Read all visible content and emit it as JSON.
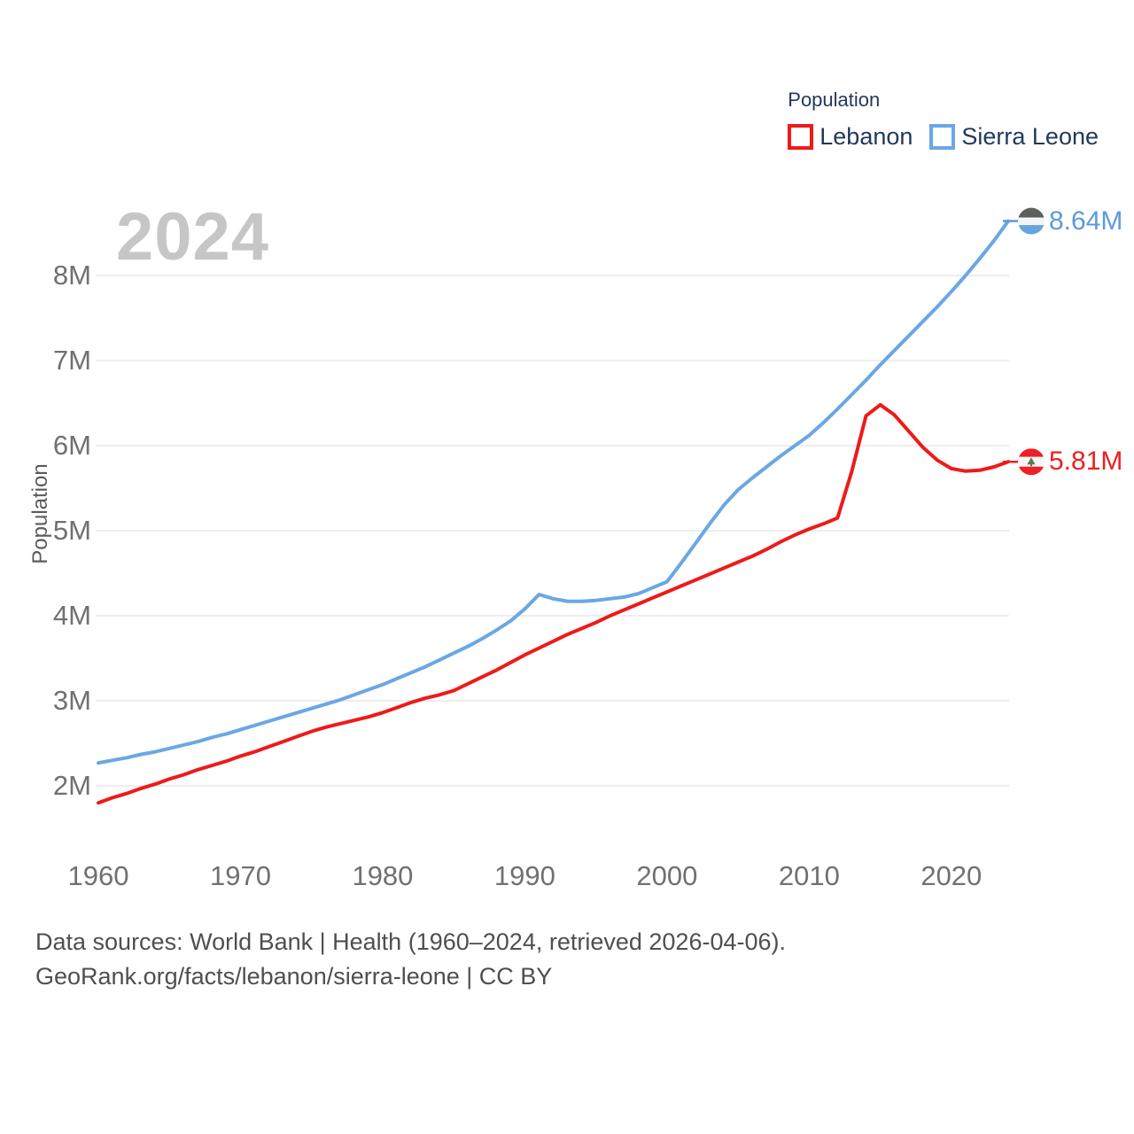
{
  "legend": {
    "title": "Population",
    "items": [
      {
        "label": "Lebanon",
        "color": "#ee1a1a"
      },
      {
        "label": "Sierra Leone",
        "color": "#6aa7e4"
      }
    ]
  },
  "watermark": "2024",
  "end_labels": [
    {
      "series": "Sierra Leone",
      "value_label": "8.64M",
      "value": 8.64,
      "color": "#5b9bdb",
      "flag": "sierra-leone-flag"
    },
    {
      "series": "Lebanon",
      "value_label": "5.81M",
      "value": 5.81,
      "color": "#f01e1e",
      "flag": "lebanon-flag"
    }
  ],
  "footer": {
    "line1": "Data sources: World Bank | Health (1960–2024, retrieved 2026-04-06).",
    "line2": "GeoRank.org/facts/lebanon/sierra-leone | CC BY"
  },
  "chart_data": {
    "type": "line",
    "title": "Population",
    "xlabel": "",
    "ylabel": "Population",
    "xlim": [
      1960,
      2024
    ],
    "ylim": [
      1.6,
      8.9
    ],
    "grid": true,
    "legend_position": "top-right",
    "unit": "millions of people",
    "x_ticks": [
      1960,
      1970,
      1980,
      1990,
      2000,
      2010,
      2020
    ],
    "y_ticks": [
      {
        "label": "2M",
        "value": 2
      },
      {
        "label": "3M",
        "value": 3
      },
      {
        "label": "4M",
        "value": 4
      },
      {
        "label": "5M",
        "value": 5
      },
      {
        "label": "6M",
        "value": 6
      },
      {
        "label": "7M",
        "value": 7
      },
      {
        "label": "8M",
        "value": 8
      }
    ],
    "x": [
      1960,
      1961,
      1962,
      1963,
      1964,
      1965,
      1966,
      1967,
      1968,
      1969,
      1970,
      1971,
      1972,
      1973,
      1974,
      1975,
      1976,
      1977,
      1978,
      1979,
      1980,
      1981,
      1982,
      1983,
      1984,
      1985,
      1986,
      1987,
      1988,
      1989,
      1990,
      1991,
      1992,
      1993,
      1994,
      1995,
      1996,
      1997,
      1998,
      1999,
      2000,
      2001,
      2002,
      2003,
      2004,
      2005,
      2006,
      2007,
      2008,
      2009,
      2010,
      2011,
      2012,
      2013,
      2014,
      2015,
      2016,
      2017,
      2018,
      2019,
      2020,
      2021,
      2022,
      2023,
      2024
    ],
    "series": [
      {
        "name": "Sierra Leone",
        "color": "#6aa7e4",
        "line_width": 4,
        "values": [
          2.27,
          2.3,
          2.33,
          2.37,
          2.4,
          2.44,
          2.48,
          2.52,
          2.57,
          2.61,
          2.66,
          2.71,
          2.76,
          2.81,
          2.86,
          2.91,
          2.96,
          3.01,
          3.07,
          3.13,
          3.19,
          3.26,
          3.33,
          3.4,
          3.48,
          3.56,
          3.64,
          3.73,
          3.83,
          3.94,
          4.08,
          4.25,
          4.2,
          4.17,
          4.17,
          4.18,
          4.2,
          4.22,
          4.26,
          4.33,
          4.4,
          4.62,
          4.85,
          5.08,
          5.3,
          5.48,
          5.62,
          5.75,
          5.88,
          6.0,
          6.12,
          6.27,
          6.43,
          6.6,
          6.77,
          6.95,
          7.12,
          7.29,
          7.46,
          7.63,
          7.81,
          8.0,
          8.2,
          8.41,
          8.64
        ]
      },
      {
        "name": "Lebanon",
        "color": "#ee1a1a",
        "line_width": 4,
        "values": [
          1.8,
          1.86,
          1.91,
          1.97,
          2.02,
          2.08,
          2.13,
          2.19,
          2.24,
          2.29,
          2.35,
          2.4,
          2.46,
          2.52,
          2.58,
          2.64,
          2.69,
          2.73,
          2.77,
          2.81,
          2.86,
          2.92,
          2.98,
          3.03,
          3.07,
          3.12,
          3.2,
          3.28,
          3.36,
          3.45,
          3.54,
          3.62,
          3.7,
          3.78,
          3.85,
          3.92,
          4.0,
          4.07,
          4.14,
          4.21,
          4.28,
          4.35,
          4.42,
          4.49,
          4.56,
          4.63,
          4.7,
          4.78,
          4.87,
          4.95,
          5.02,
          5.08,
          5.15,
          5.7,
          6.35,
          6.48,
          6.36,
          6.17,
          5.98,
          5.83,
          5.73,
          5.7,
          5.71,
          5.75,
          5.81
        ]
      }
    ]
  }
}
